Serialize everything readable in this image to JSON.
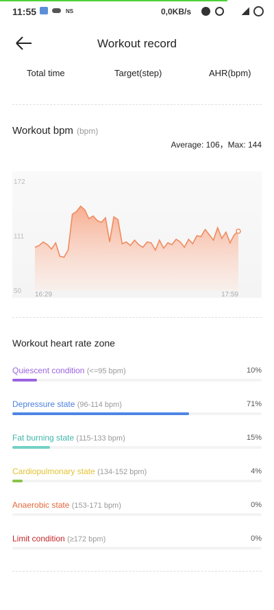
{
  "status_bar": {
    "time": "11:55",
    "carrier": "NS",
    "speed": "0,0KB/s"
  },
  "header": {
    "title": "Workout record"
  },
  "stats": {
    "labels": [
      "Total time",
      "Target(step)",
      "AHR(bpm)"
    ]
  },
  "workout": {
    "title": "Workout bpm",
    "unit": "(bpm)",
    "summary": "Average: 106，Max: 144"
  },
  "chart_data": {
    "type": "line",
    "color": "#f08a5d",
    "categories": [
      "16:29",
      null,
      null,
      null,
      null,
      null,
      null,
      null,
      null,
      null,
      null,
      null,
      null,
      null,
      null,
      null,
      null,
      null,
      null,
      null,
      null,
      null,
      null,
      null,
      null,
      null,
      null,
      null,
      null,
      null,
      null,
      null,
      null,
      null,
      null,
      null,
      null,
      null,
      null,
      null,
      null,
      null,
      null,
      null,
      null,
      null,
      null,
      null,
      null,
      "17:59"
    ],
    "values": [
      98,
      100,
      104,
      101,
      96,
      103,
      88,
      87,
      95,
      135,
      138,
      144,
      140,
      130,
      133,
      128,
      126,
      131,
      104,
      132,
      129,
      102,
      104,
      100,
      106,
      101,
      98,
      104,
      103,
      95,
      106,
      97,
      103,
      101,
      107,
      104,
      98,
      107,
      102,
      111,
      110,
      118,
      112,
      106,
      120,
      108,
      115,
      103,
      112,
      116
    ],
    "ylim": [
      50,
      172
    ],
    "yticks": [
      50,
      111,
      172
    ]
  },
  "zones": {
    "title": "Workout heart rate zone",
    "names": [
      "Quiescent condition",
      "Depressure state",
      "Fat burning state",
      "Cardiopulmonary state",
      "Anaerobic state",
      "Limit condition"
    ],
    "ranges": [
      "(<=95 bpm)",
      "(96-114 bpm)",
      "(115-133 bpm)",
      "(134-152 bpm)",
      "(153-171 bpm)",
      "(≥172 bpm)"
    ],
    "values": [
      10,
      71,
      15,
      4,
      0,
      0
    ],
    "value_labels": [
      "10%",
      "71%",
      "15%",
      "4%",
      "0%",
      "0%"
    ],
    "text_colors": [
      "#9a63e0",
      "#4a80de",
      "#3fb5aa",
      "#e2c232",
      "#e5673a",
      "#c2262a"
    ],
    "bar_colors": [
      "#9a63e0",
      "#4f86e3",
      "#74d0c6",
      "#8bc34a",
      "#e5673a",
      "#c2262a"
    ]
  }
}
